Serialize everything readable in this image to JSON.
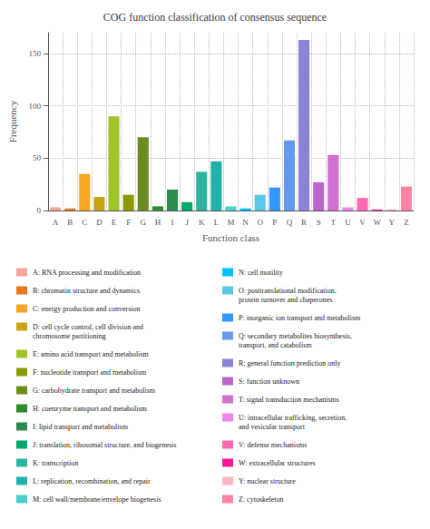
{
  "chart_data": {
    "type": "bar",
    "title": "COG function classification of consensus sequence",
    "xlabel": "Function class",
    "ylabel": "Frequency",
    "categories": [
      "A",
      "B",
      "C",
      "D",
      "E",
      "F",
      "G",
      "H",
      "I",
      "J",
      "K",
      "L",
      "M",
      "N",
      "O",
      "P",
      "Q",
      "R",
      "S",
      "T",
      "U",
      "V",
      "W",
      "Y",
      "Z"
    ],
    "values": [
      3,
      2,
      35,
      13,
      90,
      15,
      70,
      4,
      20,
      8,
      37,
      47,
      4,
      2,
      15,
      22,
      67,
      163,
      27,
      53,
      3,
      12,
      1,
      1,
      23
    ],
    "colors": [
      "#F4A59A",
      "#E87722",
      "#F5A623",
      "#C8A415",
      "#9DC52A",
      "#8B9A00",
      "#6B8C20",
      "#2D8B2D",
      "#2E8B50",
      "#00A86B",
      "#2BB5A0",
      "#20B2AA",
      "#48D1C8",
      "#00BFFF",
      "#5BC8E8",
      "#3399FF",
      "#6699EE",
      "#8B83D4",
      "#BB66CC",
      "#D070D0",
      "#EE88EE",
      "#FF69B4",
      "#FF1493",
      "#FFB6C1",
      "#FF85A2"
    ],
    "ylim": [
      0,
      170
    ],
    "yticks": [
      0,
      50,
      100,
      150
    ],
    "grid": true,
    "legend": "bottom",
    "annotations": [
      "A: RNA processing and modification",
      "B: chromatin structure and dynamics",
      "C: energy production and conversion",
      "D: cell cycle control, cell division and\nchromosome partitioning",
      "E: amino acid transport and metabolism",
      "F: nucleotide transport and metabolism",
      "G: carbohydrate transport and metabolism",
      "H: coenzyme transport and metabolism",
      "I: lipid transport and metabolism",
      "J: translation, ribosomal structure, and biogenesis",
      "K: transcription",
      "L: replication, recombination, and repair",
      "M: cell wall/membrane/envelope biogenesis",
      "N: cell motility",
      "O: posttranslational modification,\nprotein turnover and chaperones",
      "P: inorganic ion transport and metabolism",
      "Q: secondary metabolites biosynthesis,\ntransport, and catabolism",
      "R: general function prediction only",
      "S: function unknown",
      "T: signal transduction mechanisms",
      "U: intracellular trafficking, secretion,\nand vesicular transport",
      "V: defense mechanisms",
      "W: extracellular structures",
      "Y: nuclear structure",
      "Z: cytoskeleton"
    ]
  }
}
